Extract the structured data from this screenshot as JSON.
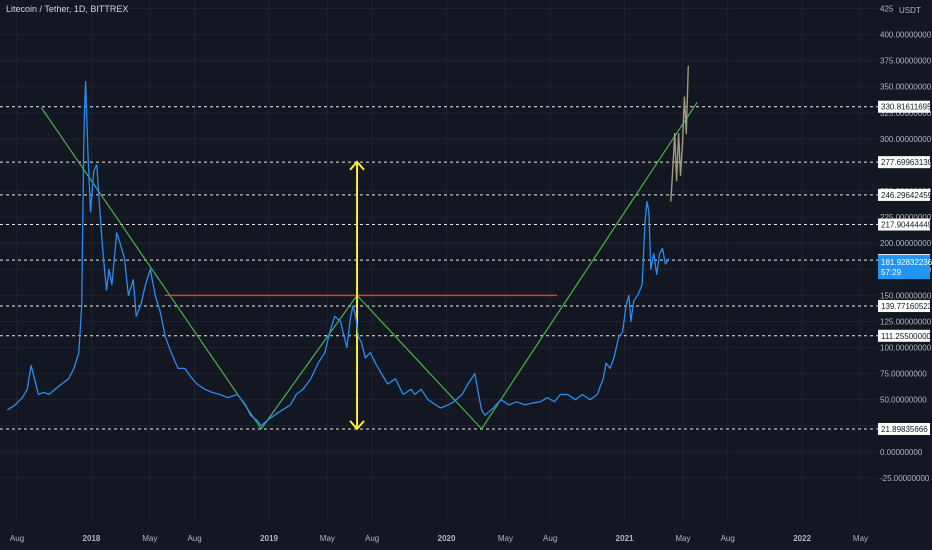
{
  "header": {
    "title": "Litecoin / Tether, 1D, BITTREX",
    "currency": "USDT"
  },
  "colors": {
    "background": "#131722",
    "grid": "#1f2331",
    "price_line": "#2a8bf2",
    "projection": "#9f9b80",
    "trend_line": "#4caf50",
    "neckline": "#e53935",
    "arrow": "#ffeb3b",
    "level_line": "#ffffff",
    "current_price_bg": "#2196f3",
    "axis_text": "#b2b5be"
  },
  "chart_data": {
    "type": "line",
    "title": "Litecoin / Tether, 1D, BITTREX",
    "xlabel": "",
    "ylabel": "",
    "ylim": [
      -50,
      425
    ],
    "xlim": [
      "2017-06-27",
      "2022-06-06"
    ],
    "grid": true,
    "y_ticks": [
      {
        "value": 425,
        "label": "425"
      },
      {
        "value": 400,
        "label": "400.00000000"
      },
      {
        "value": 375,
        "label": "375.00000000"
      },
      {
        "value": 350,
        "label": "350.00000000"
      },
      {
        "value": 325,
        "label": "325.00000000"
      },
      {
        "value": 300,
        "label": "300.00000000"
      },
      {
        "value": 275,
        "label": "275.00000000"
      },
      {
        "value": 250,
        "label": "250.00000000"
      },
      {
        "value": 225,
        "label": "225.00000000"
      },
      {
        "value": 200,
        "label": "200.00000000"
      },
      {
        "value": 175,
        "label": "175.00000000"
      },
      {
        "value": 150,
        "label": "150.00000000"
      },
      {
        "value": 125,
        "label": "125.00000000"
      },
      {
        "value": 100,
        "label": "100.00000000"
      },
      {
        "value": 75,
        "label": "75.00000000"
      },
      {
        "value": 50,
        "label": "50.00000000"
      },
      {
        "value": 25,
        "label": "25.00000000"
      },
      {
        "value": 0,
        "label": "0.00000000"
      },
      {
        "value": -25,
        "label": "-25.00000000"
      }
    ],
    "x_ticks": [
      {
        "date": "2017-08-01",
        "label": "Aug"
      },
      {
        "date": "2018-01-01",
        "label": "2018"
      },
      {
        "date": "2018-05-01",
        "label": "May"
      },
      {
        "date": "2018-08-01",
        "label": "Aug"
      },
      {
        "date": "2019-01-01",
        "label": "2019"
      },
      {
        "date": "2019-05-01",
        "label": "May"
      },
      {
        "date": "2019-08-01",
        "label": "Aug"
      },
      {
        "date": "2020-01-01",
        "label": "2020"
      },
      {
        "date": "2020-05-01",
        "label": "May"
      },
      {
        "date": "2020-08-01",
        "label": "Aug"
      },
      {
        "date": "2021-01-01",
        "label": "2021"
      },
      {
        "date": "2021-05-01",
        "label": "May"
      },
      {
        "date": "2021-08-01",
        "label": "Aug"
      },
      {
        "date": "2022-01-01",
        "label": "2022"
      },
      {
        "date": "2022-05-01",
        "label": "May"
      }
    ],
    "series": [
      {
        "role": "price",
        "x": [
          "2017-07-12",
          "2017-07-28",
          "2017-08-12",
          "2017-08-22",
          "2017-08-30",
          "2017-09-06",
          "2017-09-14",
          "2017-09-24",
          "2017-10-06",
          "2017-10-18",
          "2017-11-01",
          "2017-11-15",
          "2017-11-26",
          "2017-12-06",
          "2017-12-12",
          "2017-12-16",
          "2017-12-18",
          "2017-12-20",
          "2017-12-25",
          "2017-12-30",
          "2018-01-06",
          "2018-01-12",
          "2018-01-17",
          "2018-01-24",
          "2018-02-01",
          "2018-02-06",
          "2018-02-12",
          "2018-02-22",
          "2018-03-01",
          "2018-03-10",
          "2018-03-18",
          "2018-03-28",
          "2018-04-03",
          "2018-04-12",
          "2018-04-22",
          "2018-05-02",
          "2018-05-12",
          "2018-05-22",
          "2018-06-02",
          "2018-06-14",
          "2018-06-28",
          "2018-07-12",
          "2018-07-24",
          "2018-08-06",
          "2018-08-22",
          "2018-09-06",
          "2018-09-22",
          "2018-10-08",
          "2018-10-28",
          "2018-11-14",
          "2018-11-24",
          "2018-12-08",
          "2018-12-16",
          "2018-12-28",
          "2019-01-12",
          "2019-01-28",
          "2019-02-14",
          "2019-02-26",
          "2019-03-12",
          "2019-03-28",
          "2019-04-12",
          "2019-04-26",
          "2019-05-06",
          "2019-05-16",
          "2019-05-28",
          "2019-06-10",
          "2019-06-18",
          "2019-06-23",
          "2019-06-28",
          "2019-07-04",
          "2019-07-10",
          "2019-07-18",
          "2019-07-28",
          "2019-08-08",
          "2019-08-20",
          "2019-09-02",
          "2019-09-18",
          "2019-10-04",
          "2019-10-20",
          "2019-10-28",
          "2019-11-10",
          "2019-11-24",
          "2019-12-10",
          "2019-12-20",
          "2020-01-04",
          "2020-01-16",
          "2020-02-02",
          "2020-02-14",
          "2020-02-28",
          "2020-03-09",
          "2020-03-13",
          "2020-03-20",
          "2020-04-06",
          "2020-04-22",
          "2020-05-08",
          "2020-05-24",
          "2020-06-10",
          "2020-06-28",
          "2020-07-12",
          "2020-07-26",
          "2020-08-10",
          "2020-08-22",
          "2020-09-06",
          "2020-09-22",
          "2020-10-06",
          "2020-10-22",
          "2020-11-06",
          "2020-11-18",
          "2020-11-24",
          "2020-12-02",
          "2020-12-10",
          "2020-12-20",
          "2020-12-28",
          "2021-01-04",
          "2021-01-10",
          "2021-01-14",
          "2021-01-20",
          "2021-01-28",
          "2021-02-06",
          "2021-02-12",
          "2021-02-16",
          "2021-02-20",
          "2021-02-24",
          "2021-03-02",
          "2021-03-08",
          "2021-03-14",
          "2021-03-20",
          "2021-03-26",
          "2021-04-02"
        ],
        "values": [
          40,
          45,
          52,
          60,
          83,
          70,
          55,
          57,
          55,
          60,
          65,
          70,
          80,
          95,
          140,
          290,
          330,
          355,
          285,
          230,
          270,
          275,
          240,
          195,
          155,
          175,
          160,
          210,
          200,
          185,
          150,
          165,
          130,
          140,
          160,
          175,
          150,
          135,
          110,
          95,
          80,
          80,
          72,
          65,
          60,
          57,
          55,
          52,
          55,
          45,
          35,
          30,
          25,
          30,
          35,
          40,
          45,
          55,
          60,
          70,
          85,
          95,
          115,
          130,
          125,
          100,
          130,
          140,
          130,
          110,
          105,
          90,
          95,
          85,
          75,
          65,
          70,
          55,
          60,
          55,
          60,
          50,
          45,
          42,
          45,
          48,
          55,
          65,
          75,
          50,
          40,
          35,
          42,
          50,
          45,
          48,
          45,
          47,
          48,
          52,
          48,
          55,
          55,
          50,
          55,
          50,
          55,
          70,
          85,
          80,
          90,
          110,
          115,
          140,
          150,
          125,
          145,
          150,
          160,
          220,
          240,
          230,
          175,
          190,
          170,
          190,
          195,
          180,
          185
        ]
      },
      {
        "role": "projection",
        "x": [
          "2021-04-06",
          "2021-04-10",
          "2021-04-14",
          "2021-04-18",
          "2021-04-22",
          "2021-04-26",
          "2021-04-30",
          "2021-05-04",
          "2021-05-08",
          "2021-05-12"
        ],
        "values": [
          240,
          270,
          305,
          260,
          305,
          265,
          295,
          340,
          305,
          370
        ]
      }
    ],
    "trend_lines": [
      {
        "x": [
          "2017-09-20",
          "2018-12-16"
        ],
        "y": [
          330,
          22
        ]
      },
      {
        "x": [
          "2018-12-16",
          "2019-07-01"
        ],
        "y": [
          22,
          150
        ]
      },
      {
        "x": [
          "2019-07-01",
          "2020-03-13"
        ],
        "y": [
          150,
          22
        ]
      },
      {
        "x": [
          "2020-03-13",
          "2021-05-30"
        ],
        "y": [
          22,
          335
        ]
      }
    ],
    "neckline": {
      "x": [
        "2018-06-01",
        "2020-08-15"
      ],
      "y": [
        150,
        150
      ]
    },
    "measure_arrow": {
      "x": "2019-07-01",
      "y": [
        22,
        278
      ]
    },
    "levels": [
      {
        "value": 330.81611695,
        "label": "330.81611695"
      },
      {
        "value": 277.6996313,
        "label": "277.69963130"
      },
      {
        "value": 246.29642459,
        "label": "246.29642459"
      },
      {
        "value": 217.90444449,
        "label": "217.90444449"
      },
      {
        "value": 183.78185924,
        "label": "183.78185924"
      },
      {
        "value": 139.77160523,
        "label": "139.77160523"
      },
      {
        "value": 111.255,
        "label": "111.25500000"
      },
      {
        "value": 21.89835666,
        "label": "21.89835666"
      }
    ],
    "current_price": {
      "value": 181.92832236,
      "label": "181.92832236",
      "countdown": "57:29"
    }
  }
}
